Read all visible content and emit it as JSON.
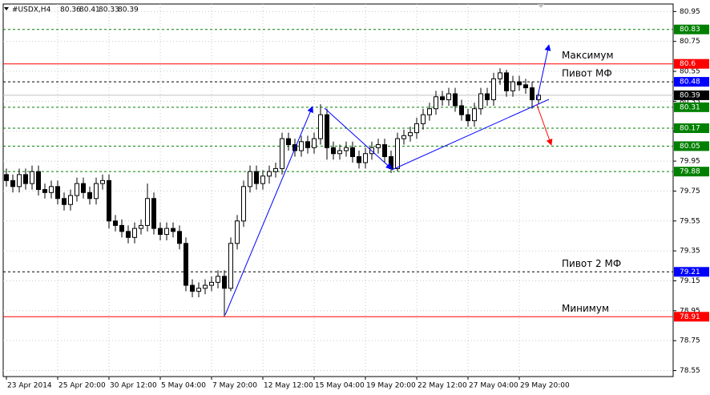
{
  "chart_data": {
    "type": "candlestick",
    "symbol": "#USDX,H4",
    "categories": [
      "23 Apr 2014",
      null,
      null,
      null,
      null,
      null,
      null,
      null,
      "25 Apr 20:00",
      null,
      null,
      null,
      null,
      null,
      null,
      null,
      "30 Apr 12:00",
      null,
      null,
      null,
      null,
      null,
      null,
      null,
      "5 May 04:00",
      null,
      null,
      null,
      null,
      null,
      null,
      null,
      "7 May 20:00",
      null,
      null,
      null,
      null,
      null,
      null,
      null,
      "12 May 12:00",
      null,
      null,
      null,
      null,
      null,
      null,
      null,
      "15 May 04:00",
      null,
      null,
      null,
      null,
      null,
      null,
      null,
      "19 May 20:00",
      null,
      null,
      null,
      null,
      null,
      null,
      null,
      "22 May 12:00",
      null,
      null,
      null,
      null,
      null,
      null,
      null,
      "27 May 04:00",
      null,
      null,
      null,
      null,
      null,
      null,
      null,
      "29 May 20:00",
      null,
      null,
      null
    ],
    "open": [
      79.86,
      79.82,
      79.78,
      79.86,
      79.8,
      79.88,
      79.76,
      79.74,
      79.78,
      79.7,
      79.66,
      79.72,
      79.8,
      79.74,
      79.7,
      79.8,
      79.82,
      79.55,
      79.52,
      79.48,
      79.44,
      79.5,
      79.52,
      79.7,
      79.5,
      79.46,
      79.5,
      79.48,
      79.4,
      79.12,
      79.08,
      79.1,
      79.12,
      79.14,
      79.18,
      79.1,
      79.4,
      79.55,
      79.78,
      79.88,
      79.8,
      79.85,
      79.88,
      79.9,
      80.1,
      80.06,
      80.02,
      80.08,
      80.04,
      80.1,
      80.26,
      80.04,
      80.0,
      80.02,
      80.04,
      79.98,
      79.94,
      80.0,
      80.04,
      80.06,
      79.98,
      79.9,
      80.1,
      80.12,
      80.14,
      80.2,
      80.26,
      80.3,
      80.38,
      80.36,
      80.4,
      80.32,
      80.26,
      80.22,
      80.3,
      80.4,
      80.36,
      80.5,
      80.54,
      80.42,
      80.48,
      80.46,
      80.44,
      80.36
    ],
    "high": [
      79.9,
      79.86,
      79.9,
      79.9,
      79.92,
      79.92,
      79.8,
      79.82,
      79.82,
      79.74,
      79.76,
      79.84,
      79.84,
      79.78,
      79.84,
      79.86,
      79.86,
      79.59,
      79.56,
      79.52,
      79.54,
      79.56,
      79.8,
      79.74,
      79.54,
      79.54,
      79.54,
      79.52,
      79.44,
      79.16,
      79.14,
      79.16,
      79.18,
      79.22,
      79.22,
      79.44,
      79.59,
      79.82,
      79.92,
      79.92,
      79.89,
      79.92,
      79.94,
      80.14,
      80.14,
      80.1,
      80.12,
      80.12,
      80.14,
      80.33,
      80.3,
      80.08,
      80.06,
      80.08,
      80.08,
      80.02,
      80.04,
      80.08,
      80.1,
      80.1,
      80.02,
      80.14,
      80.16,
      80.18,
      80.24,
      80.3,
      80.34,
      80.42,
      80.42,
      80.44,
      80.44,
      80.36,
      80.3,
      80.34,
      80.44,
      80.44,
      80.54,
      80.57,
      80.56,
      80.52,
      80.52,
      80.5,
      80.48,
      80.41
    ],
    "low": [
      79.78,
      79.74,
      79.74,
      79.76,
      79.76,
      79.72,
      79.7,
      79.7,
      79.66,
      79.62,
      79.62,
      79.68,
      79.7,
      79.66,
      79.66,
      79.76,
      79.5,
      79.48,
      79.44,
      79.4,
      79.4,
      79.46,
      79.48,
      79.46,
      79.42,
      79.42,
      79.44,
      79.36,
      79.08,
      79.04,
      79.04,
      79.06,
      79.08,
      79.1,
      78.91,
      79.08,
      79.36,
      79.51,
      79.74,
      79.76,
      79.76,
      79.8,
      79.84,
      79.86,
      80.02,
      79.98,
      79.98,
      80.0,
      80.0,
      80.06,
      79.96,
      79.96,
      79.96,
      79.98,
      79.94,
      79.9,
      79.9,
      79.96,
      80.0,
      79.94,
      79.87,
      79.88,
      80.06,
      80.08,
      80.1,
      80.16,
      80.22,
      80.26,
      80.32,
      80.32,
      80.28,
      80.22,
      80.18,
      80.18,
      80.26,
      80.32,
      80.32,
      80.46,
      80.38,
      80.38,
      80.42,
      80.4,
      80.3,
      80.33
    ],
    "close": [
      79.82,
      79.78,
      79.86,
      79.8,
      79.88,
      79.76,
      79.74,
      79.78,
      79.7,
      79.66,
      79.72,
      79.8,
      79.74,
      79.7,
      79.8,
      79.82,
      79.55,
      79.52,
      79.48,
      79.44,
      79.5,
      79.52,
      79.7,
      79.5,
      79.46,
      79.5,
      79.48,
      79.4,
      79.12,
      79.08,
      79.1,
      79.12,
      79.14,
      79.18,
      79.1,
      79.4,
      79.55,
      79.78,
      79.88,
      79.8,
      79.85,
      79.88,
      79.9,
      80.1,
      80.06,
      80.02,
      80.08,
      80.04,
      80.1,
      80.26,
      80.04,
      80.0,
      80.02,
      80.04,
      79.98,
      79.94,
      80.0,
      80.04,
      80.06,
      79.98,
      79.9,
      80.1,
      80.12,
      80.14,
      80.2,
      80.26,
      80.3,
      80.38,
      80.36,
      80.4,
      80.32,
      80.26,
      80.22,
      80.3,
      80.4,
      80.36,
      80.5,
      80.54,
      80.42,
      80.48,
      80.46,
      80.44,
      80.36,
      80.39
    ],
    "up_color": "#ffffff",
    "down_color": "#000000",
    "wick_color": "#000000",
    "ylim": [
      78.51,
      81.0
    ],
    "yticks": [
      80.95,
      80.75,
      80.55,
      80.35,
      80.15,
      79.95,
      79.75,
      79.55,
      79.35,
      79.15,
      78.95,
      78.75,
      78.55
    ],
    "grid": true,
    "levels": [
      {
        "value": 80.83,
        "color": "#008000",
        "style": "dashed"
      },
      {
        "value": 80.6,
        "color": "#ff0000",
        "style": "solid",
        "name": "Максимум"
      },
      {
        "value": 80.48,
        "color": "#0000ff",
        "line_color": "#000000",
        "style": "dashed",
        "name": "Пивот МФ"
      },
      {
        "value": 80.31,
        "color": "#008000",
        "style": "dashed"
      },
      {
        "value": 80.17,
        "color": "#008000",
        "style": "dashed"
      },
      {
        "value": 80.05,
        "color": "#008000",
        "style": "dashed"
      },
      {
        "value": 79.88,
        "color": "#008000",
        "style": "dashed"
      },
      {
        "value": 79.21,
        "color": "#0000ff",
        "line_color": "#000000",
        "style": "dashed",
        "name": "Пивот 2 МФ"
      },
      {
        "value": 78.91,
        "color": "#ff0000",
        "style": "solid",
        "name": "Минимум"
      }
    ]
  }
}
